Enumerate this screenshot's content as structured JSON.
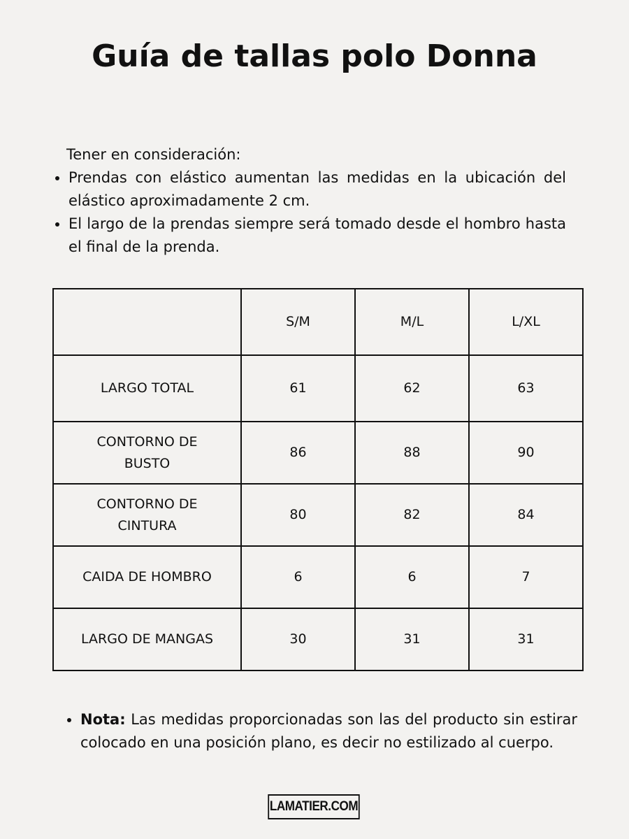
{
  "title": "Guía de tallas polo Donna",
  "intro": {
    "heading": "Tener en consideración:",
    "bullets": [
      "Prendas con elástico aumentan las medidas en la ubicación del elástico aproximadamente 2 cm.",
      "El largo de la prendas siempre será tomado desde el hombro hasta el final de la prenda."
    ]
  },
  "table": {
    "headers": [
      "",
      "S/M",
      "M/L",
      "L/XL"
    ],
    "rows": [
      [
        "LARGO TOTAL",
        "61",
        "62",
        "63"
      ],
      [
        "CONTORNO DE BUSTO",
        "86",
        "88",
        "90"
      ],
      [
        "CONTORNO DE CINTURA",
        "80",
        "82",
        "84"
      ],
      [
        "CAIDA DE HOMBRO",
        "6",
        "6",
        "7"
      ],
      [
        "LARGO DE MANGAS",
        "30",
        "31",
        "31"
      ]
    ]
  },
  "note": {
    "label": "Nota:",
    "text": " Las medidas proporcionadas son las del producto sin estirar colocado en una posición plano, es decir no estilizado al cuerpo."
  },
  "logo": "LAMATIER.COM"
}
